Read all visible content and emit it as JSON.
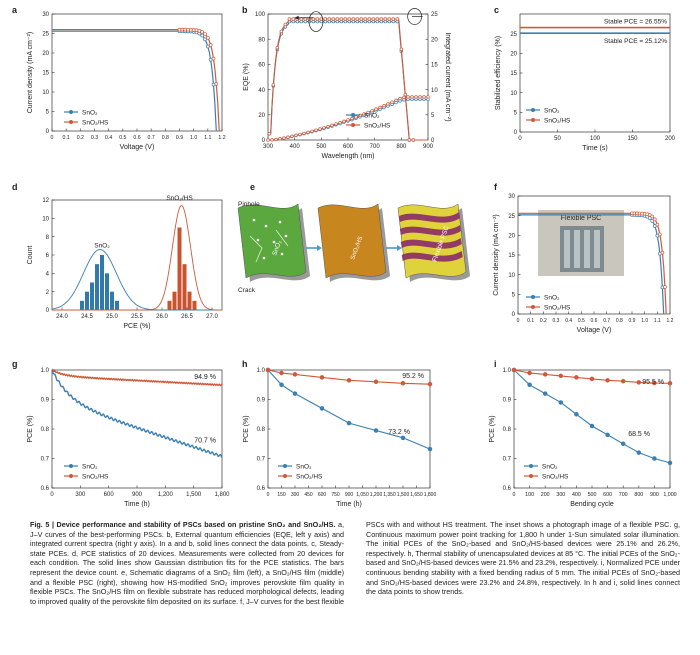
{
  "colors": {
    "blue": "#3a7fb2",
    "red": "#cf5a3a",
    "blue_bar": "#2f79ad",
    "red_bar": "#c8532e"
  },
  "legend": {
    "sno2": "SnO₂",
    "sno2hs": "SnO₂/HS"
  },
  "panel_labels": [
    "a",
    "b",
    "c",
    "d",
    "e",
    "f",
    "g",
    "h",
    "i"
  ],
  "chart_data": [
    {
      "id": "a",
      "type": "line",
      "xlabel": "Voltage (V)",
      "ylabel": "Current density (mA cm⁻²)",
      "xlim": [
        0,
        1.2
      ],
      "ylim": [
        0,
        30
      ],
      "xticks": [
        "0",
        "0.1",
        "0.2",
        "0.3",
        "0.4",
        "0.5",
        "0.6",
        "0.7",
        "0.8",
        "0.9",
        "1.0",
        "1.1",
        "1.2"
      ],
      "yticks": [
        "0",
        "5",
        "10",
        "15",
        "20",
        "25",
        "30"
      ],
      "series": [
        {
          "name": "SnO₂",
          "jsc": 25.6,
          "voc": 1.16
        },
        {
          "name": "SnO₂/HS",
          "jsc": 26.0,
          "voc": 1.18
        }
      ]
    },
    {
      "id": "b",
      "type": "line",
      "xlabel": "Wavelength (nm)",
      "ylabel": "EQE (%)",
      "y2label": "Integrated current (mA cm⁻²)",
      "xlim": [
        300,
        900
      ],
      "ylim": [
        0,
        100
      ],
      "y2lim": [
        0,
        25
      ],
      "xticks": [
        "300",
        "400",
        "500",
        "600",
        "700",
        "800",
        "900"
      ],
      "yticks": [
        "0",
        "20",
        "40",
        "60",
        "80",
        "100"
      ],
      "y2ticks": [
        "0",
        "5",
        "10",
        "15",
        "20",
        "25"
      ]
    },
    {
      "id": "c",
      "type": "line",
      "xlabel": "Time (s)",
      "ylabel": "Stabilized efficiency (%)",
      "xlim": [
        0,
        200
      ],
      "ylim": [
        0,
        30
      ],
      "xticks": [
        "0",
        "50",
        "100",
        "150",
        "200"
      ],
      "yticks": [
        "0",
        "5",
        "10",
        "15",
        "20",
        "25"
      ],
      "series": [
        {
          "name": "SnO₂",
          "value": 25.12
        },
        {
          "name": "SnO₂/HS",
          "value": 26.55
        }
      ],
      "annotations": [
        "Stable PCE = 26.55%",
        "Stable PCE = 25.12%"
      ]
    },
    {
      "id": "d",
      "type": "bar",
      "xlabel": "PCE (%)",
      "ylabel": "Count",
      "xlim": [
        23.8,
        27.2
      ],
      "ylim": [
        0,
        12
      ],
      "xticks": [
        "24.0",
        "24.5",
        "25.0",
        "25.5",
        "26.0",
        "26.5",
        "27.0"
      ],
      "yticks": [
        "0",
        "2",
        "4",
        "6",
        "8",
        "10",
        "12"
      ],
      "series": [
        {
          "name": "SnO₂",
          "bin_start": 24.35,
          "bin_width": 0.1,
          "counts": [
            1,
            2,
            3,
            5,
            6,
            4,
            2,
            1
          ]
        },
        {
          "name": "SnO₂/HS",
          "bin_start": 26.1,
          "bin_width": 0.1,
          "counts": [
            1,
            2,
            9,
            5,
            2,
            1
          ]
        }
      ],
      "labels": [
        "SnO₂",
        "SnO₂/HS"
      ]
    },
    {
      "id": "f",
      "type": "line",
      "xlabel": "Voltage (V)",
      "ylabel": "Current density (mA cm⁻²)",
      "xlim": [
        0,
        1.2
      ],
      "ylim": [
        0,
        30
      ],
      "xticks": [
        "0",
        "0.1",
        "0.2",
        "0.3",
        "0.4",
        "0.5",
        "0.6",
        "0.7",
        "0.8",
        "0.9",
        "1.0",
        "1.1",
        "1.2"
      ],
      "yticks": [
        "0",
        "5",
        "10",
        "15",
        "20",
        "25",
        "30"
      ],
      "series": [
        {
          "name": "SnO₂",
          "jsc": 25.2,
          "voc": 1.15
        },
        {
          "name": "SnO₂/HS",
          "jsc": 25.6,
          "voc": 1.17
        }
      ],
      "inset_label": "Flexible PSC"
    },
    {
      "id": "g",
      "type": "line",
      "xlabel": "Time (h)",
      "ylabel": "PCE (%)",
      "xlim": [
        0,
        1800
      ],
      "ylim": [
        0.6,
        1.0
      ],
      "xticks": [
        "0",
        "300",
        "600",
        "900",
        "1,200",
        "1,500",
        "1,800"
      ],
      "yticks": [
        "0.6",
        "0.7",
        "0.8",
        "0.9",
        "1.0"
      ],
      "series": [
        {
          "name": "SnO₂",
          "final": 0.707
        },
        {
          "name": "SnO₂/HS",
          "final": 0.949
        }
      ],
      "annotations": [
        "94.9 %",
        "70.7 %"
      ]
    },
    {
      "id": "h",
      "type": "line",
      "xlabel": "Time (h)",
      "ylabel": "PCE (%)",
      "xlim": [
        0,
        1800
      ],
      "ylim": [
        0.6,
        1.0
      ],
      "xticks": [
        "0",
        "150",
        "300",
        "450",
        "600",
        "750",
        "900",
        "1,050",
        "1,200",
        "1,350",
        "1,500",
        "1,650",
        "1,800"
      ],
      "yticks": [
        "0.6",
        "0.7",
        "0.8",
        "0.9",
        "1.0"
      ],
      "series": [
        {
          "name": "SnO₂",
          "x": [
            0,
            150,
            300,
            600,
            900,
            1200,
            1500,
            1800
          ],
          "y": [
            1.0,
            0.95,
            0.92,
            0.87,
            0.82,
            0.795,
            0.77,
            0.732
          ]
        },
        {
          "name": "SnO₂/HS",
          "x": [
            0,
            150,
            300,
            600,
            900,
            1200,
            1500,
            1800
          ],
          "y": [
            1.0,
            0.99,
            0.985,
            0.975,
            0.965,
            0.96,
            0.955,
            0.952
          ]
        }
      ],
      "annotations": [
        "95.2 %",
        "73.2 %"
      ]
    },
    {
      "id": "i",
      "type": "line",
      "xlabel": "Bending cycle",
      "ylabel": "PCE (%)",
      "xlim": [
        0,
        1000
      ],
      "ylim": [
        0.6,
        1.0
      ],
      "xticks": [
        "0",
        "100",
        "200",
        "300",
        "400",
        "500",
        "600",
        "700",
        "800",
        "900",
        "1,000"
      ],
      "yticks": [
        "0.6",
        "0.7",
        "0.8",
        "0.9",
        "1.0"
      ],
      "series": [
        {
          "name": "SnO₂",
          "x": [
            0,
            100,
            200,
            300,
            400,
            500,
            600,
            700,
            800,
            900,
            1000
          ],
          "y": [
            1.0,
            0.95,
            0.92,
            0.89,
            0.85,
            0.81,
            0.78,
            0.75,
            0.72,
            0.7,
            0.685
          ]
        },
        {
          "name": "SnO₂/HS",
          "x": [
            0,
            100,
            200,
            300,
            400,
            500,
            600,
            700,
            800,
            900,
            1000
          ],
          "y": [
            1.0,
            0.99,
            0.985,
            0.98,
            0.975,
            0.97,
            0.965,
            0.962,
            0.958,
            0.956,
            0.955
          ]
        }
      ],
      "annotations": [
        "95.5 %",
        "68.5 %"
      ]
    }
  ],
  "schematic": {
    "labels": [
      "Pinhole",
      "Crack",
      "SnO₂",
      "SnO₂/HS",
      "Flexible PSC"
    ]
  },
  "caption": {
    "title": "Fig. 5 | Device performance and stability of PSCs based on pristine SnO₂ and SnO₂/HS.",
    "body": " a, J–V curves of the best-performing PSCs. b, External quantum efficiencies (EQE, left y axis) and integrated current spectra (right y axis). In a and b, solid lines connect the data points. c, Steady-state PCEs. d, PCE statistics of 20 devices. Measurements were collected from 20 devices for each condition. The solid lines show Gaussian distribution fits for the PCE statistics. The bars represent the device count. e, Schematic diagrams of a SnO₂ film (left), a SnO₂/HS film (middle) and a flexible PSC (right), showing how HS-modified SnO₂ improves perovskite film quality in flexible PSCs. The SnO₂/HS film on flexible substrate has reduced morphological defects, leading to improved quality of the perovskite film deposited on its surface. f, J–V curves for the best flexible PSCs with and without HS treatment. The inset shows a photograph image of a flexible PSC. g, Continuous maximum power point tracking for 1,800 h under 1-Sun simulated solar illumination. The initial PCEs of the SnO₂-based and SnO₂/HS-based devices were 25.1% and 26.2%, respectively. h, Thermal stability of unencapsulated devices at 85 °C. The initial PCEs of the SnO₂-based and SnO₂/HS-based devices were 21.5% and 23.2%, respectively. i, Normalized PCE under continuous bending stability with a fixed bending radius of 5 mm. The initial PCEs of SnO₂-based and SnO₂/HS-based devices were 23.2% and 24.8%, respectively. In h and i, solid lines connect the data points to show trends."
  }
}
